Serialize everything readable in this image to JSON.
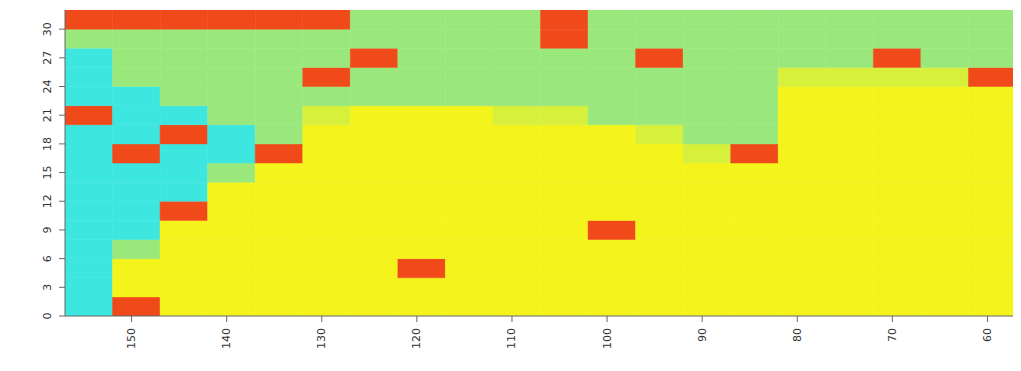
{
  "chart_data": {
    "type": "heatmap",
    "x_bins": [
      157,
      152,
      147,
      142,
      137,
      132,
      127,
      122,
      117,
      112,
      107,
      102,
      97,
      92,
      87,
      82,
      77,
      72,
      67,
      62,
      57
    ],
    "y_bins": [
      0,
      2,
      4,
      6,
      8,
      10,
      12,
      14,
      16,
      18,
      20,
      22,
      24,
      26,
      28,
      30,
      32
    ],
    "cells": [
      [
        0,
        4,
        3,
        3,
        3,
        3,
        3,
        3,
        3,
        3,
        3,
        3,
        3,
        3,
        3,
        3,
        3,
        3,
        3,
        3
      ],
      [
        0,
        3,
        3,
        3,
        3,
        3,
        3,
        3,
        3,
        3,
        3,
        3,
        3,
        3,
        3,
        3,
        3,
        3,
        3,
        3
      ],
      [
        0,
        3,
        3,
        3,
        3,
        3,
        3,
        4,
        3,
        3,
        3,
        3,
        3,
        3,
        3,
        3,
        3,
        3,
        3,
        3
      ],
      [
        0,
        1,
        3,
        3,
        3,
        3,
        3,
        3,
        3,
        3,
        3,
        3,
        3,
        3,
        3,
        3,
        3,
        3,
        3,
        3
      ],
      [
        0,
        0,
        3,
        3,
        3,
        3,
        3,
        3,
        3,
        3,
        3,
        4,
        3,
        3,
        3,
        3,
        3,
        3,
        3,
        3
      ],
      [
        0,
        0,
        4,
        3,
        3,
        3,
        3,
        3,
        3,
        3,
        3,
        3,
        3,
        3,
        3,
        3,
        3,
        3,
        3,
        3
      ],
      [
        0,
        0,
        0,
        3,
        3,
        3,
        3,
        3,
        3,
        3,
        3,
        3,
        3,
        3,
        3,
        3,
        3,
        3,
        3,
        3
      ],
      [
        0,
        0,
        0,
        1,
        3,
        3,
        3,
        3,
        3,
        3,
        3,
        3,
        3,
        3,
        3,
        3,
        3,
        3,
        3,
        3
      ],
      [
        0,
        4,
        0,
        0,
        4,
        3,
        3,
        3,
        3,
        3,
        3,
        3,
        3,
        2,
        4,
        3,
        3,
        3,
        3,
        3
      ],
      [
        0,
        0,
        4,
        0,
        1,
        3,
        3,
        3,
        3,
        3,
        3,
        3,
        2,
        1,
        1,
        3,
        3,
        3,
        3,
        3
      ],
      [
        4,
        0,
        0,
        1,
        1,
        2,
        3,
        3,
        3,
        2,
        2,
        1,
        1,
        1,
        1,
        3,
        3,
        3,
        3,
        3
      ],
      [
        0,
        0,
        1,
        1,
        1,
        1,
        1,
        1,
        1,
        1,
        1,
        1,
        1,
        1,
        1,
        3,
        3,
        3,
        3,
        3
      ],
      [
        0,
        1,
        1,
        1,
        1,
        4,
        1,
        1,
        1,
        1,
        1,
        1,
        1,
        1,
        1,
        2,
        2,
        2,
        2,
        4
      ],
      [
        0,
        1,
        1,
        1,
        1,
        1,
        4,
        1,
        1,
        1,
        1,
        1,
        4,
        1,
        1,
        1,
        1,
        4,
        1,
        1
      ],
      [
        1,
        1,
        1,
        1,
        1,
        1,
        1,
        1,
        1,
        1,
        4,
        1,
        1,
        1,
        1,
        1,
        1,
        1,
        1,
        1
      ],
      [
        4,
        4,
        4,
        4,
        4,
        4,
        1,
        1,
        1,
        1,
        4,
        1,
        1,
        1,
        1,
        1,
        1,
        1,
        1,
        1
      ]
    ],
    "colors": [
      "#3ee6e0",
      "#9ae87c",
      "#d6f03c",
      "#f4f41c",
      "#f04a1a"
    ],
    "xlim": [
      157,
      57
    ],
    "xticks": [
      150,
      140,
      130,
      120,
      110,
      100,
      90,
      80,
      70,
      60
    ],
    "ylim": [
      0,
      32
    ],
    "yticks": [
      0,
      3,
      6,
      9,
      12,
      15,
      18,
      21,
      24,
      27,
      30
    ],
    "grid": false
  }
}
